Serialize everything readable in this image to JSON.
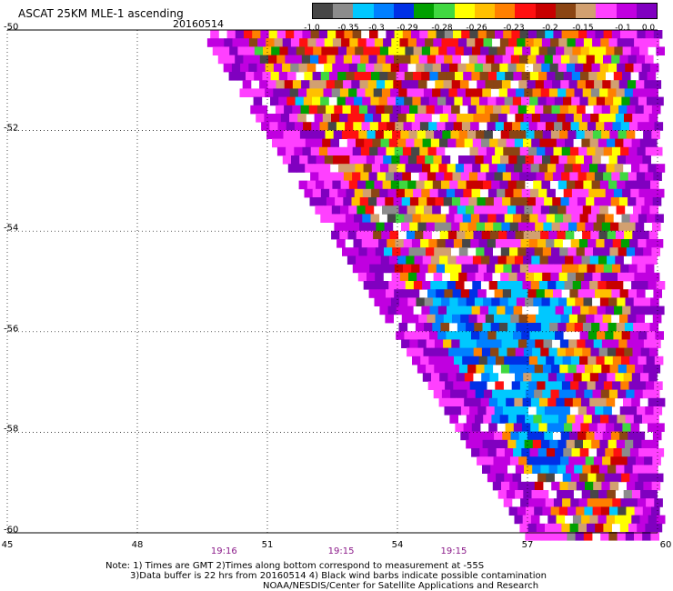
{
  "header": {
    "title": "ASCAT 25KM MLE-1 ascending",
    "date": "20160514"
  },
  "colorbar": {
    "colors": [
      "#474747",
      "#8c8c8c",
      "#00c8ff",
      "#0080ff",
      "#0030e6",
      "#00a000",
      "#40d840",
      "#ffff00",
      "#ffc000",
      "#ff8000",
      "#ff1010",
      "#c80000",
      "#8b4513",
      "#d2a070",
      "#ff40ff",
      "#c000e0",
      "#8000c0"
    ],
    "labels": [
      "-1.0",
      "-0.35",
      "-0.3",
      "-0.29",
      "-0.28",
      "-0.26",
      "-0.23",
      "-0.2",
      "-0.15",
      "-0.1",
      "0.0"
    ]
  },
  "chart_data": {
    "type": "heatmap",
    "title": "ASCAT 25KM MLE-1 ascending",
    "x_ticks": [
      "45",
      "48",
      "51",
      "54",
      "57",
      "60"
    ],
    "y_ticks": [
      "-50",
      "-52",
      "-54",
      "-56",
      "-58",
      "-60"
    ],
    "xlim": [
      45,
      60
    ],
    "ylim": [
      -60,
      -50
    ],
    "time_labels": [
      {
        "text": "19:16",
        "x": 50
      },
      {
        "text": "19:15",
        "x": 52.7
      },
      {
        "text": "19:15",
        "x": 55.3
      }
    ],
    "swath": {
      "description_points": [
        [
          49.5,
          -50
        ],
        [
          56.7,
          -60
        ],
        [
          60,
          -60
        ],
        [
          60,
          -50
        ]
      ]
    },
    "dominant_zones": [
      {
        "region": "west edge",
        "value_range": "-0.1 to 0.0"
      },
      {
        "region": "center",
        "value_range": "-0.28 to -0.2"
      },
      {
        "region": "south-center",
        "value_range": "-0.35 to -0.29"
      },
      {
        "region": "east",
        "value_range": "-0.26 to 0.0"
      }
    ],
    "grid": true
  },
  "notes": {
    "line1": "Note: 1) Times are GMT 2)Times along bottom correspond to measurement at -55S",
    "line2": "3)Data buffer is 22 hrs from 20160514 4) Black wind barbs indicate possible contamination",
    "line3": "NOAA/NESDIS/Center for Satellite Applications and Research"
  }
}
